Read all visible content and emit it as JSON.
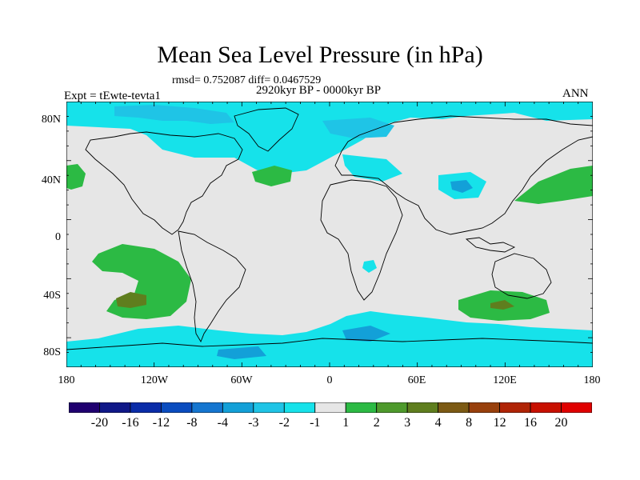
{
  "title": "Mean Sea Level Pressure (in hPa)",
  "stats": "rmsd= 0.752087 diff= 0.0467529",
  "period": "2920kyr BP - 0000kyr BP",
  "experiment": "Expt = tEwte-tevta1",
  "season": "ANN",
  "lat_labels": [
    "80N",
    "40N",
    "0",
    "40S",
    "80S"
  ],
  "lon_labels": [
    "180",
    "120W",
    "60W",
    "0",
    "60E",
    "120E",
    "180"
  ],
  "colorbar": {
    "labels": [
      "-20",
      "-16",
      "-12",
      "-8",
      "-4",
      "-3",
      "-2",
      "-1",
      "1",
      "2",
      "3",
      "4",
      "8",
      "12",
      "16",
      "20"
    ],
    "colors": [
      "#200070",
      "#101888",
      "#0a2ca8",
      "#0a4cbf",
      "#1576d0",
      "#13a0d8",
      "#1fc4e6",
      "#16e2ea",
      "#e6e6e6",
      "#2cba44",
      "#4e9a2c",
      "#5f7e1e",
      "#7c5a14",
      "#98400c",
      "#b02406",
      "#c81000",
      "#e00000"
    ]
  },
  "map_colors": {
    "background": "#e6e6e6",
    "light_blue": "#16e2ea",
    "mid_blue": "#1fc4e6",
    "blue": "#13a0d8",
    "green": "#2cba44",
    "dark_green": "#5f7e1e",
    "coast": "#000000"
  }
}
